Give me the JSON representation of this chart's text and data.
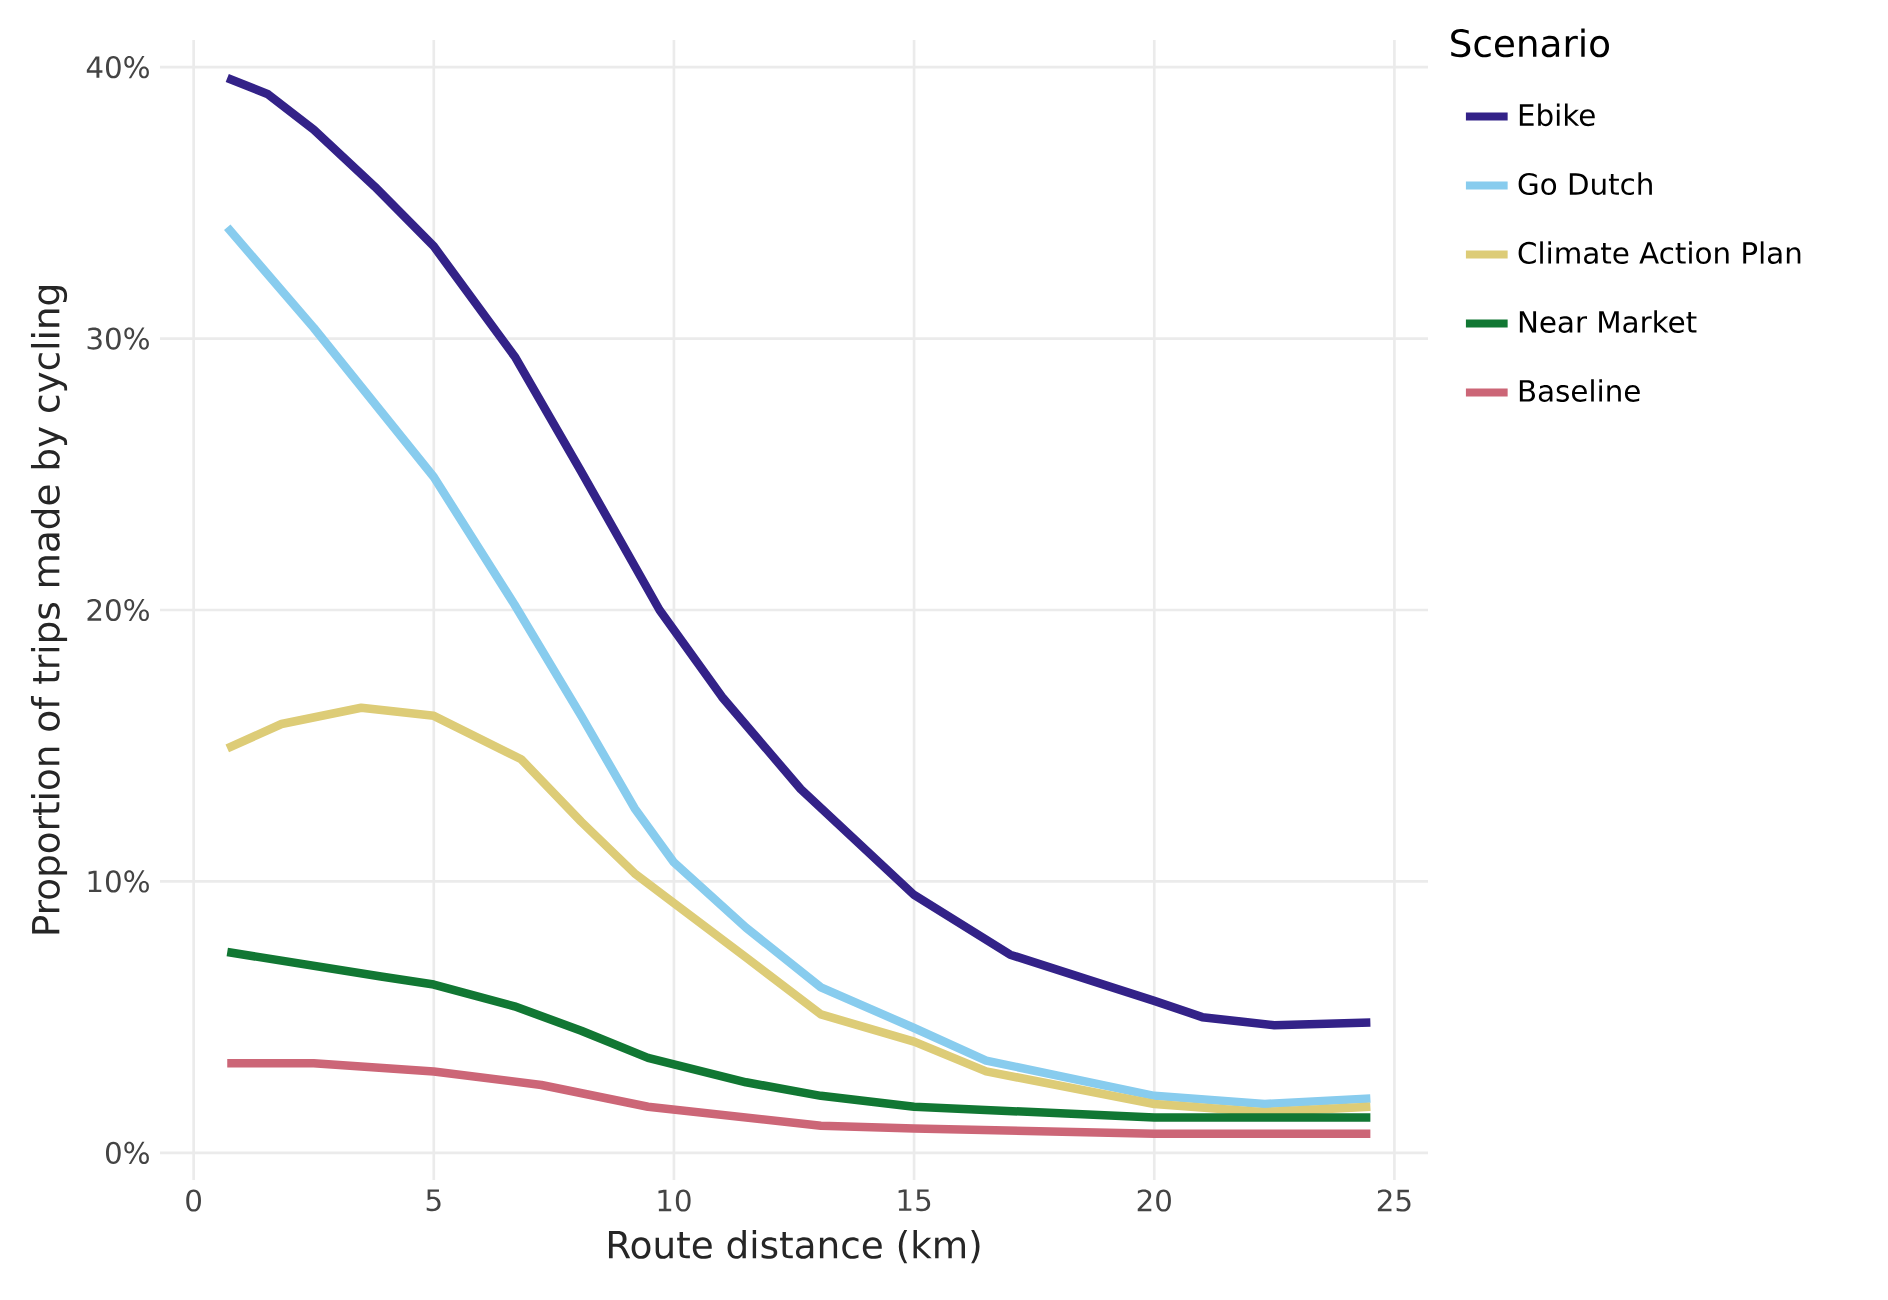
{
  "chart_data": {
    "type": "line",
    "xlabel": "Route distance (km)",
    "ylabel": "Proportion of trips made by cycling",
    "legend_title": "Scenario",
    "legend": "top right",
    "grid": true,
    "line_style": "solid",
    "marker": "none",
    "xlim": [
      -0.7,
      25.7
    ],
    "ylim": [
      -1,
      41
    ],
    "xticks": [
      0,
      5,
      10,
      15,
      20,
      25
    ],
    "yticks": [
      {
        "value": 0,
        "label": "0%"
      },
      {
        "value": 10,
        "label": "10%"
      },
      {
        "value": 20,
        "label": "20%"
      },
      {
        "value": 30,
        "label": "30%"
      },
      {
        "value": 40,
        "label": "40%"
      }
    ],
    "series": [
      {
        "name": "Ebike",
        "color": "#332288",
        "x": [
          0.7,
          1.55,
          2.5,
          3.77,
          5,
          6.7,
          8.07,
          9.7,
          11,
          12.64,
          15,
          17,
          20,
          21,
          22.5,
          24.5
        ],
        "values": [
          39.6,
          39.0,
          37.7,
          35.6,
          33.4,
          29.3,
          25.1,
          20,
          16.8,
          13.4,
          9.5,
          7.3,
          5.6,
          5.0,
          4.7,
          4.8
        ]
      },
      {
        "name": "Go Dutch",
        "color": "#88ccee",
        "x": [
          0.7,
          2.5,
          5,
          6.68,
          8.07,
          9.18,
          10,
          11.5,
          13.06,
          15,
          16.5,
          20,
          22.3,
          24.5
        ],
        "values": [
          34.1,
          30.4,
          24.9,
          20.2,
          16.1,
          12.7,
          10.7,
          8.3,
          6.1,
          4.6,
          3.4,
          2.1,
          1.8,
          2.0
        ]
      },
      {
        "name": "Climate Action Plan",
        "color": "#ddcc77",
        "x": [
          0.7,
          1.83,
          3.49,
          5,
          6.82,
          8.07,
          9.18,
          10,
          11.5,
          13.06,
          15,
          16.5,
          20,
          22.3,
          24.5
        ],
        "values": [
          14.9,
          15.8,
          16.4,
          16.1,
          14.5,
          12.2,
          10.3,
          9.2,
          7.2,
          5.1,
          4.1,
          3.0,
          1.8,
          1.5,
          1.7
        ]
      },
      {
        "name": "Near Market",
        "color": "#117733",
        "x": [
          0.7,
          3.9,
          5,
          6.68,
          8.07,
          9.46,
          11.5,
          13.06,
          15,
          20,
          24.5
        ],
        "values": [
          7.4,
          6.5,
          6.2,
          5.4,
          4.5,
          3.5,
          2.6,
          2.1,
          1.7,
          1.3,
          1.3
        ]
      },
      {
        "name": "Baseline",
        "color": "#cc6677",
        "x": [
          0.7,
          2.5,
          5,
          7.24,
          9.46,
          13.06,
          15,
          20,
          24.5
        ],
        "values": [
          3.3,
          3.3,
          3.0,
          2.5,
          1.7,
          1.0,
          0.9,
          0.7,
          0.7
        ]
      }
    ]
  }
}
